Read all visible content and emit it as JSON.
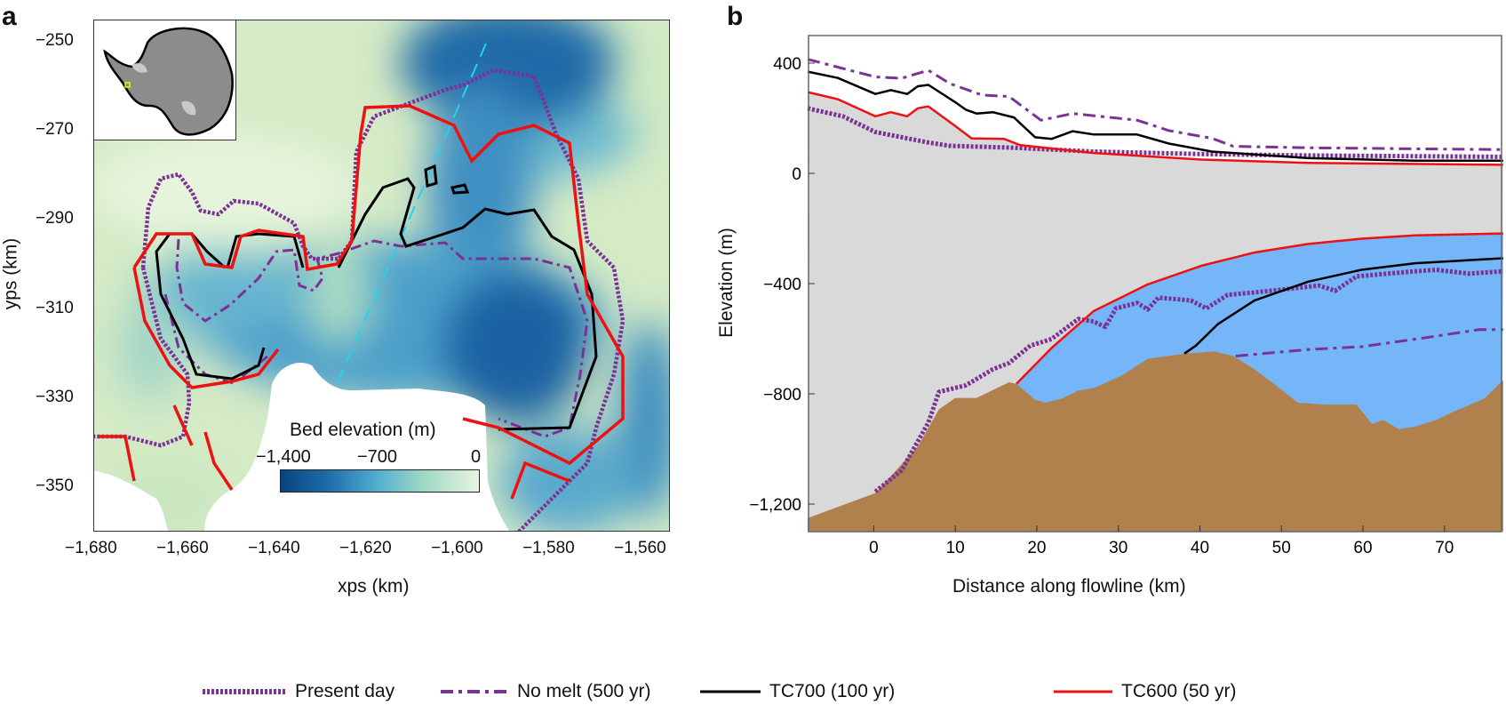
{
  "panels": {
    "a_label": "a",
    "b_label": "b"
  },
  "colors": {
    "present_day": "#7b3294",
    "no_melt": "#7b3294",
    "tc700": "#000000",
    "tc600": "#ee1111",
    "ice": "#d9d9d9",
    "ocean_cavity": "#74b6f7",
    "bed": "#b0814d",
    "flowline": "#22d3f0"
  },
  "legend": [
    {
      "label": "Present day",
      "style": "dotted",
      "color": "#7b3294"
    },
    {
      "label": "No melt (500 yr)",
      "style": "dash-dot",
      "color": "#7b3294"
    },
    {
      "label": "TC700 (100 yr)",
      "style": "solid",
      "color": "#000000"
    },
    {
      "label": "TC600 (50 yr)",
      "style": "solid",
      "color": "#ee1111"
    }
  ],
  "chart_data": [
    {
      "panel": "a",
      "type": "heatmap",
      "xlabel": "xps (km)",
      "ylabel": "yps (km)",
      "xlim": [
        -1680,
        -1554
      ],
      "ylim": [
        -360,
        -245
      ],
      "xticks": [
        -1680,
        -1660,
        -1640,
        -1620,
        -1600,
        -1580,
        -1560
      ],
      "xtick_labels": [
        "−1,680",
        "−1,660",
        "−1,640",
        "−1,620",
        "−1,600",
        "−1,580",
        "−1,560"
      ],
      "yticks": [
        -250,
        -270,
        -290,
        -310,
        -330,
        -350
      ],
      "ytick_labels": [
        "−250",
        "−270",
        "−290",
        "−310",
        "−330",
        "−350"
      ],
      "grid": false,
      "colorbar": {
        "label": "Bed elevation (m)",
        "range": [
          -1400,
          0
        ],
        "ticks": [
          -1400,
          -700,
          0
        ],
        "tick_labels": [
          "−1,400",
          "−700",
          "0"
        ],
        "colormap": "blue-to-light-green"
      },
      "inset": "Antarctica location map with study area marked in yellow",
      "overlays": [
        "Present day",
        "No melt (500 yr)",
        "TC700 (100 yr)",
        "TC600 (50 yr)",
        "flowline (cyan dashed)"
      ]
    },
    {
      "panel": "b",
      "type": "line",
      "xlabel": "Distance along flowline (km)",
      "ylabel": "Elevation (m)",
      "xlim": [
        -8,
        77
      ],
      "ylim": [
        -1300,
        500
      ],
      "xticks": [
        0,
        10,
        20,
        30,
        40,
        50,
        60,
        70
      ],
      "xtick_labels": [
        "0",
        "10",
        "20",
        "30",
        "40",
        "50",
        "60",
        "70"
      ],
      "yticks": [
        400,
        0,
        -400,
        -800,
        -1200
      ],
      "ytick_labels": [
        "400",
        "0",
        "−400",
        "−800",
        "−1,200"
      ],
      "grid": false,
      "bed": {
        "x": [
          -8.1,
          0.2,
          5.4,
          8.0,
          10.0,
          12.6,
          16.6,
          17.5,
          19.8,
          21.1,
          23.1,
          25.1,
          27.0,
          30.3,
          33.6,
          38.2,
          41.8,
          44.1,
          46.7,
          49.3,
          52.0,
          55.2,
          59.2,
          61.1,
          62.5,
          64.4,
          66.4,
          69.0,
          71.0,
          74.9,
          77.2
        ],
        "y": [
          -1251,
          -1160,
          -991,
          -856,
          -815,
          -815,
          -758,
          -764,
          -822,
          -832,
          -817,
          -788,
          -779,
          -735,
          -673,
          -654,
          -646,
          -663,
          -711,
          -769,
          -832,
          -839,
          -839,
          -909,
          -895,
          -928,
          -919,
          -895,
          -866,
          -817,
          -750
        ]
      },
      "series": [
        {
          "name": "Present day",
          "part": "surface",
          "style": "dotted",
          "x": [
            -8.1,
            -3.8,
            0.2,
            6.7,
            9.3,
            17.2,
            27.0,
            40.2,
            53.3,
            77.2
          ],
          "y": [
            236,
            207,
            150,
            112,
            100,
            93,
            79,
            70,
            65,
            60
          ]
        },
        {
          "name": "Present day",
          "part": "base",
          "style": "dotted",
          "x": [
            0.2,
            3.4,
            6.7,
            8.0,
            11.3,
            14.6,
            16.6,
            19.2,
            21.8,
            25.1,
            27.0,
            28.4,
            29.7,
            32.3,
            33.6,
            34.9,
            38.9,
            40.8,
            43.4,
            46.7,
            50.0,
            54.6,
            56.6,
            59.2,
            66.4,
            69.0,
            73.0,
            77.2
          ],
          "y": [
            -1155,
            -1078,
            -904,
            -793,
            -769,
            -711,
            -688,
            -625,
            -601,
            -528,
            -538,
            -557,
            -490,
            -470,
            -494,
            -451,
            -461,
            -490,
            -441,
            -432,
            -422,
            -407,
            -426,
            -374,
            -355,
            -350,
            -364,
            -355
          ]
        },
        {
          "name": "No melt (500 yr)",
          "part": "surface",
          "style": "dash-dot",
          "x": [
            -8.1,
            0.2,
            3.4,
            6.7,
            9.3,
            13.3,
            16.6,
            20.5,
            24.4,
            32.3,
            36.2,
            41.5,
            44.1,
            53.3,
            66.4,
            77.2
          ],
          "y": [
            414,
            350,
            345,
            374,
            326,
            284,
            279,
            193,
            217,
            193,
            155,
            127,
            98,
            93,
            89,
            86
          ]
        },
        {
          "name": "No melt (500 yr)",
          "part": "base",
          "style": "dash-dot",
          "x": [
            44.4,
            53.3,
            59.8,
            67.7,
            74.2,
            77.2
          ],
          "y": [
            -663,
            -639,
            -629,
            -596,
            -567,
            -567
          ]
        },
        {
          "name": "TC700 (100 yr)",
          "part": "surface",
          "style": "solid",
          "x": [
            -8.1,
            -4.4,
            0.2,
            2.1,
            4.1,
            5.4,
            6.7,
            9.9,
            11.3,
            12.6,
            14.6,
            17.2,
            19.8,
            21.8,
            24.4,
            27.0,
            32.3,
            36.2,
            41.5,
            53.3,
            66.4,
            77.2
          ],
          "y": [
            369,
            346,
            288,
            302,
            288,
            316,
            321,
            260,
            231,
            217,
            222,
            203,
            131,
            125,
            153,
            141,
            141,
            108,
            79,
            55,
            46,
            46
          ]
        },
        {
          "name": "TC700 (100 yr)",
          "part": "base",
          "style": "solid",
          "x": [
            38.1,
            39.5,
            42.2,
            46.7,
            53.3,
            59.8,
            66.4,
            77.2
          ],
          "y": [
            -654,
            -625,
            -547,
            -461,
            -393,
            -350,
            -326,
            -308
          ]
        },
        {
          "name": "TC600 (50 yr)",
          "part": "surface",
          "style": "solid",
          "x": [
            -8.1,
            -4.4,
            0.2,
            2.1,
            4.1,
            5.4,
            6.7,
            9.9,
            12.0,
            16.0,
            17.9,
            27.0,
            40.2,
            53.3,
            77.2
          ],
          "y": [
            295,
            269,
            207,
            222,
            207,
            236,
            243,
            174,
            127,
            125,
            103,
            74,
            50,
            38,
            31
          ]
        },
        {
          "name": "TC600 (50 yr)",
          "part": "base",
          "style": "solid",
          "x": [
            17.5,
            21.8,
            27.0,
            33.6,
            40.2,
            46.7,
            53.3,
            59.8,
            66.4,
            77.2
          ],
          "y": [
            -764,
            -634,
            -499,
            -403,
            -335,
            -287,
            -256,
            -237,
            -225,
            -218
          ]
        }
      ]
    }
  ]
}
